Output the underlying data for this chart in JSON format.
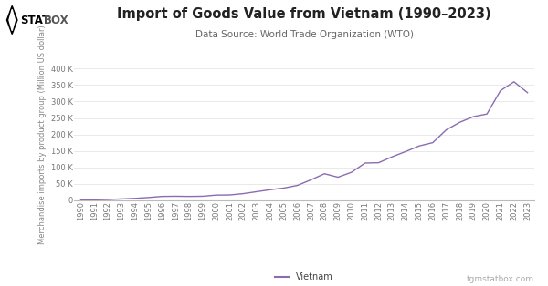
{
  "title": "Import of Goods Value from Vietnam (1990–2023)",
  "subtitle": "Data Source: World Trade Organization (WTO)",
  "ylabel": "Merchandise imports by product group (Million US dollar)",
  "watermark": "tgmstatbox.com",
  "legend_label": "Vietnam",
  "line_color": "#8b6bb1",
  "background_color": "#ffffff",
  "grid_color": "#e0e0e0",
  "years": [
    1990,
    1991,
    1992,
    1993,
    1994,
    1995,
    1996,
    1997,
    1998,
    1999,
    2000,
    2001,
    2002,
    2003,
    2004,
    2005,
    2006,
    2007,
    2008,
    2009,
    2010,
    2011,
    2012,
    2013,
    2014,
    2015,
    2016,
    2017,
    2018,
    2019,
    2020,
    2021,
    2022,
    2023
  ],
  "values": [
    1000,
    1200,
    2100,
    3900,
    5600,
    8200,
    11500,
    12000,
    11500,
    12000,
    15600,
    16000,
    20000,
    26000,
    32000,
    37000,
    45000,
    62000,
    80500,
    70000,
    85000,
    113000,
    114000,
    132000,
    148000,
    165000,
    175000,
    214000,
    237000,
    254000,
    262000,
    333000,
    360000,
    327000
  ],
  "ylim": [
    0,
    400000
  ],
  "yticks": [
    0,
    50000,
    100000,
    150000,
    200000,
    250000,
    300000,
    350000,
    400000
  ],
  "ytick_labels": [
    "0",
    "50 K",
    "100 K",
    "150 K",
    "200 K",
    "250 K",
    "300 K",
    "350 K",
    "400 K"
  ],
  "title_fontsize": 10.5,
  "subtitle_fontsize": 7.5,
  "ylabel_fontsize": 6.0,
  "tick_fontsize": 6.0,
  "legend_fontsize": 7,
  "logo_text_stat": "STAT",
  "logo_text_box": "BOX",
  "logo_fontsize": 9
}
